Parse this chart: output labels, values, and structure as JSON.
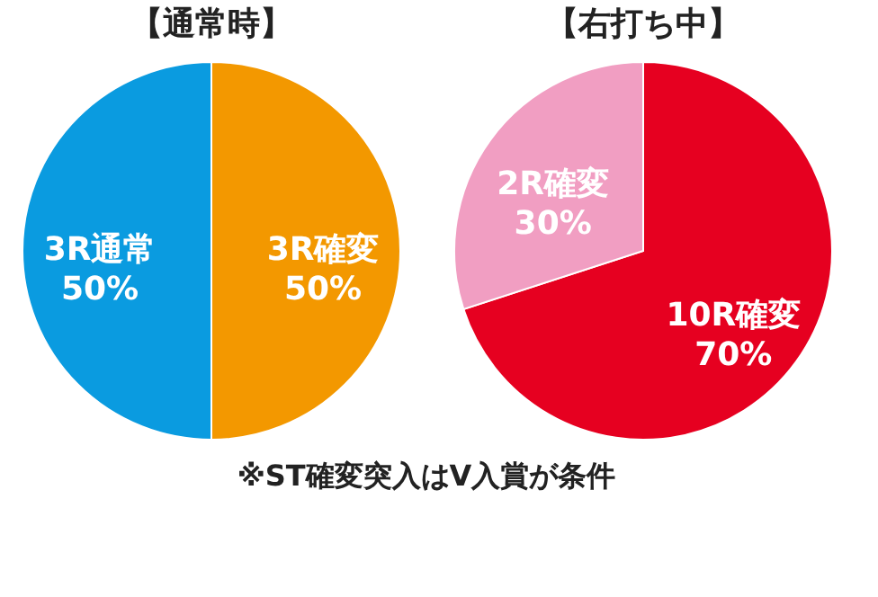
{
  "chart_data": [
    {
      "type": "pie",
      "title": "【通常時】",
      "categories": [
        "3R確変",
        "3R通常"
      ],
      "values": [
        50,
        50
      ],
      "value_labels": [
        "50%",
        "50%"
      ],
      "colors": [
        "#f39800",
        "#0a9be0"
      ]
    },
    {
      "type": "pie",
      "title": "【右打ち中】",
      "categories": [
        "10R確変",
        "2R確変"
      ],
      "values": [
        70,
        30
      ],
      "value_labels": [
        "70%",
        "30%"
      ],
      "colors": [
        "#e60020",
        "#f19ec2"
      ],
      "annotations": [
        "※ST確変突入はV入賞が条件"
      ]
    }
  ]
}
